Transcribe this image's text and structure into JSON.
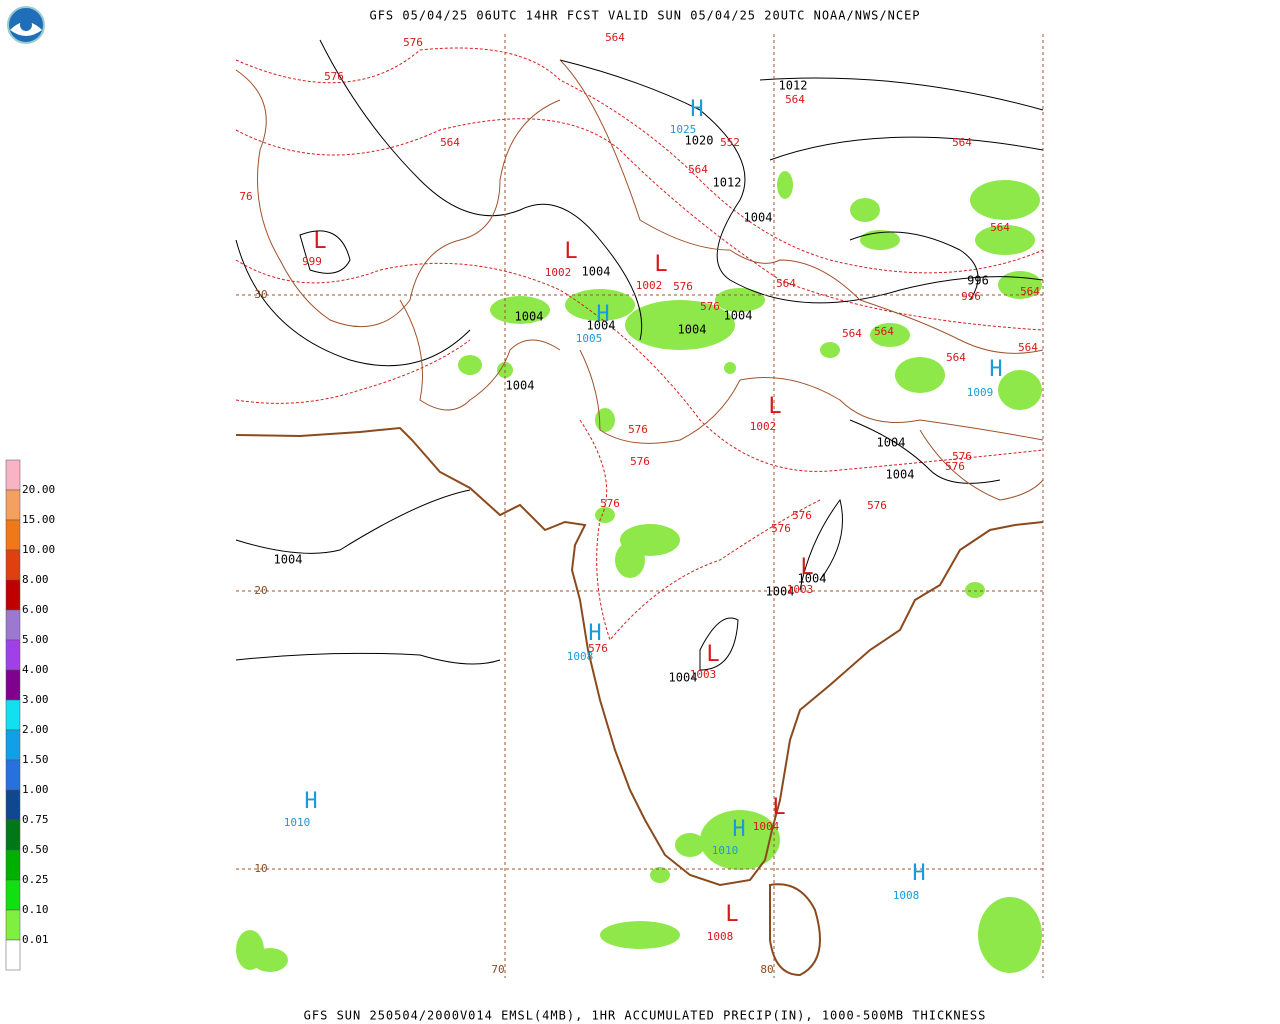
{
  "header": {
    "title": "GFS 05/04/25 06UTC 14HR FCST VALID SUN 05/04/25 20UTC NOAA/NWS/NCEP"
  },
  "footer": {
    "text": "GFS SUN 250504/2000V014 EMSL(4MB), 1HR ACCUMULATED PRECIP(IN), 1000-500MB THICKNESS"
  },
  "legend": {
    "items": [
      {
        "label": "20.00",
        "color": "#f8b4c4"
      },
      {
        "label": "15.00",
        "color": "#f4a060"
      },
      {
        "label": "10.00",
        "color": "#f07818"
      },
      {
        "label": "8.00",
        "color": "#e04010"
      },
      {
        "label": "6.00",
        "color": "#c00000"
      },
      {
        "label": "5.00",
        "color": "#9c78d0"
      },
      {
        "label": "4.00",
        "color": "#a040e8"
      },
      {
        "label": "3.00",
        "color": "#800090"
      },
      {
        "label": "2.00",
        "color": "#10e0f0"
      },
      {
        "label": "1.50",
        "color": "#10a0e8"
      },
      {
        "label": "1.00",
        "color": "#2870e0"
      },
      {
        "label": "0.75",
        "color": "#104890"
      },
      {
        "label": "0.50",
        "color": "#007818"
      },
      {
        "label": "0.25",
        "color": "#00b000"
      },
      {
        "label": "0.10",
        "color": "#10e010"
      },
      {
        "label": "0.01",
        "color": "#80f040"
      }
    ]
  },
  "grid_labels": [
    "30",
    "20",
    "10",
    "70",
    "80"
  ],
  "map_labels": [
    "576",
    "564",
    "576",
    "564",
    "76",
    "L",
    "999",
    "1012",
    "564",
    "H",
    "1025",
    "1020",
    "552",
    "564",
    "564",
    "1012",
    "1004",
    "L",
    "1002",
    "1004",
    "L",
    "1002",
    "576",
    "576",
    "564",
    "564",
    "996",
    "996",
    "564",
    "1004",
    "H",
    "1004",
    "1005",
    "1004",
    "1004",
    "564",
    "564",
    "564",
    "564",
    "H",
    "1009",
    "1004",
    "L",
    "1002",
    "576",
    "576",
    "1004",
    "1004",
    "576",
    "576",
    "576",
    "576",
    "576",
    "576",
    "1004",
    "L",
    "1004",
    "1004",
    "1003",
    "H",
    "1008",
    "576",
    "L",
    "1004",
    "1003",
    "H",
    "1010",
    "L",
    "1004",
    "H",
    "1010",
    "H",
    "1008",
    "L",
    "1008"
  ]
}
